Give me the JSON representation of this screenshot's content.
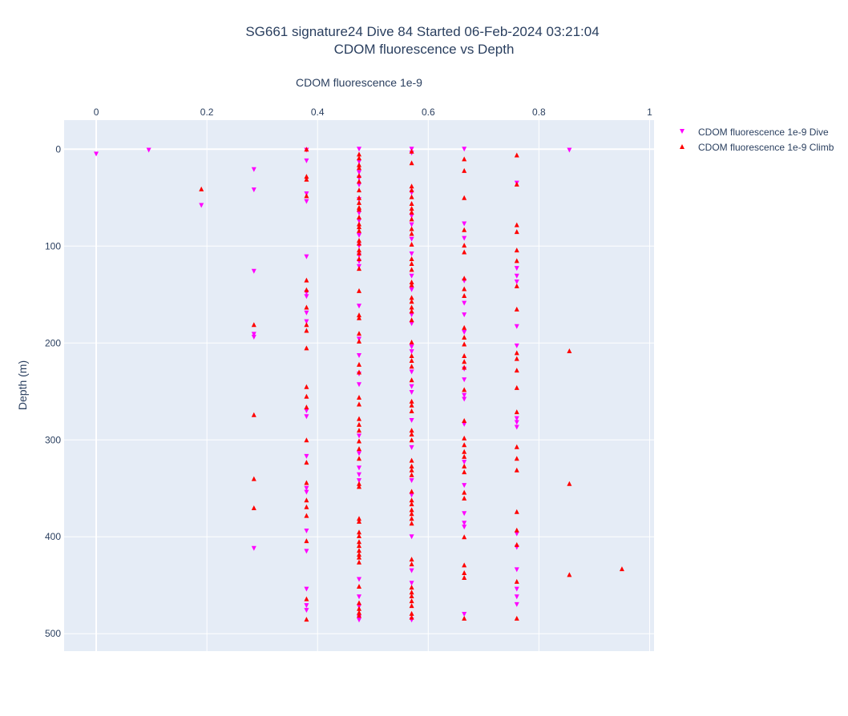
{
  "chart_data": {
    "type": "scatter",
    "title": "SG661 signature24 Dive 84 Started 06-Feb-2024 03:21:04",
    "subtitle": "CDOM fluorescence vs Depth",
    "xlabel": "CDOM fluorescence 1e-9",
    "ylabel": "Depth (m)",
    "xlim": [
      -0.058,
      1.008
    ],
    "ylim": [
      518,
      -30
    ],
    "x_axis_position": "top",
    "y_reversed": true,
    "grid": true,
    "legend_placement": "top-right",
    "x_ticks": [
      {
        "value": 0,
        "label": "0"
      },
      {
        "value": 0.2,
        "label": "0.2"
      },
      {
        "value": 0.4,
        "label": "0.4"
      },
      {
        "value": 0.6,
        "label": "0.6"
      },
      {
        "value": 0.8,
        "label": "0.8"
      },
      {
        "value": 1,
        "label": "1"
      }
    ],
    "y_ticks": [
      {
        "value": 0,
        "label": "0"
      },
      {
        "value": 100,
        "label": "100"
      },
      {
        "value": 200,
        "label": "200"
      },
      {
        "value": 300,
        "label": "300"
      },
      {
        "value": 400,
        "label": "400"
      },
      {
        "value": 500,
        "label": "500"
      }
    ],
    "series": [
      {
        "name": "CDOM fluorescence 1e-9 Dive",
        "marker": "triangle-down",
        "color": "#ff00ff",
        "points": [
          [
            0,
            5
          ],
          [
            0.095,
            1
          ],
          [
            0.285,
            21
          ],
          [
            0.285,
            42
          ],
          [
            0.19,
            58
          ],
          [
            0.285,
            126
          ],
          [
            0.285,
            191
          ],
          [
            0.285,
            194
          ],
          [
            0.285,
            412
          ],
          [
            0.38,
            1
          ],
          [
            0.38,
            12
          ],
          [
            0.38,
            46
          ],
          [
            0.38,
            54
          ],
          [
            0.38,
            111
          ],
          [
            0.38,
            148
          ],
          [
            0.38,
            152
          ],
          [
            0.38,
            169
          ],
          [
            0.38,
            178
          ],
          [
            0.38,
            270
          ],
          [
            0.38,
            276
          ],
          [
            0.38,
            317
          ],
          [
            0.38,
            350
          ],
          [
            0.38,
            354
          ],
          [
            0.38,
            394
          ],
          [
            0.38,
            415
          ],
          [
            0.38,
            454
          ],
          [
            0.38,
            471
          ],
          [
            0.38,
            476
          ],
          [
            0.475,
            0
          ],
          [
            0.475,
            13
          ],
          [
            0.475,
            24
          ],
          [
            0.475,
            30
          ],
          [
            0.475,
            37
          ],
          [
            0.475,
            52
          ],
          [
            0.475,
            66
          ],
          [
            0.475,
            74
          ],
          [
            0.475,
            89
          ],
          [
            0.475,
            100
          ],
          [
            0.475,
            110
          ],
          [
            0.475,
            116
          ],
          [
            0.475,
            121
          ],
          [
            0.475,
            162
          ],
          [
            0.475,
            196
          ],
          [
            0.475,
            213
          ],
          [
            0.475,
            232
          ],
          [
            0.475,
            243
          ],
          [
            0.475,
            296
          ],
          [
            0.475,
            314
          ],
          [
            0.475,
            329
          ],
          [
            0.475,
            336
          ],
          [
            0.475,
            342
          ],
          [
            0.475,
            444
          ],
          [
            0.475,
            462
          ],
          [
            0.475,
            472
          ],
          [
            0.475,
            483
          ],
          [
            0.475,
            486
          ],
          [
            0.57,
            0
          ],
          [
            0.57,
            4
          ],
          [
            0.57,
            45
          ],
          [
            0.57,
            69
          ],
          [
            0.57,
            78
          ],
          [
            0.57,
            93
          ],
          [
            0.57,
            108
          ],
          [
            0.57,
            131
          ],
          [
            0.57,
            145
          ],
          [
            0.57,
            171
          ],
          [
            0.57,
            180
          ],
          [
            0.57,
            204
          ],
          [
            0.57,
            209
          ],
          [
            0.57,
            230
          ],
          [
            0.57,
            245
          ],
          [
            0.57,
            251
          ],
          [
            0.57,
            280
          ],
          [
            0.57,
            308
          ],
          [
            0.57,
            342
          ],
          [
            0.57,
            357
          ],
          [
            0.57,
            400
          ],
          [
            0.57,
            435
          ],
          [
            0.57,
            448
          ],
          [
            0.57,
            486
          ],
          [
            0.665,
            0
          ],
          [
            0.665,
            77
          ],
          [
            0.665,
            92
          ],
          [
            0.665,
            136
          ],
          [
            0.665,
            159
          ],
          [
            0.665,
            171
          ],
          [
            0.665,
            189
          ],
          [
            0.665,
            227
          ],
          [
            0.665,
            238
          ],
          [
            0.665,
            254
          ],
          [
            0.665,
            258
          ],
          [
            0.665,
            284
          ],
          [
            0.665,
            323
          ],
          [
            0.665,
            347
          ],
          [
            0.665,
            376
          ],
          [
            0.665,
            386
          ],
          [
            0.665,
            390
          ],
          [
            0.665,
            480
          ],
          [
            0.76,
            35
          ],
          [
            0.76,
            123
          ],
          [
            0.76,
            131
          ],
          [
            0.76,
            137
          ],
          [
            0.76,
            183
          ],
          [
            0.76,
            203
          ],
          [
            0.76,
            278
          ],
          [
            0.76,
            282
          ],
          [
            0.76,
            287
          ],
          [
            0.76,
            397
          ],
          [
            0.76,
            411
          ],
          [
            0.76,
            434
          ],
          [
            0.76,
            454
          ],
          [
            0.76,
            462
          ],
          [
            0.76,
            470
          ],
          [
            0.855,
            1
          ]
        ]
      },
      {
        "name": "CDOM fluorescence 1e-9 Climb",
        "marker": "triangle-up",
        "color": "#ff0000",
        "points": [
          [
            0.19,
            41
          ],
          [
            0.285,
            181
          ],
          [
            0.285,
            274
          ],
          [
            0.285,
            340
          ],
          [
            0.285,
            370
          ],
          [
            0.38,
            0
          ],
          [
            0.38,
            28
          ],
          [
            0.38,
            31
          ],
          [
            0.38,
            48
          ],
          [
            0.38,
            135
          ],
          [
            0.38,
            145
          ],
          [
            0.38,
            163
          ],
          [
            0.38,
            181
          ],
          [
            0.38,
            187
          ],
          [
            0.38,
            205
          ],
          [
            0.38,
            245
          ],
          [
            0.38,
            255
          ],
          [
            0.38,
            266
          ],
          [
            0.38,
            300
          ],
          [
            0.38,
            323
          ],
          [
            0.38,
            344
          ],
          [
            0.38,
            362
          ],
          [
            0.38,
            369
          ],
          [
            0.38,
            378
          ],
          [
            0.38,
            404
          ],
          [
            0.38,
            464
          ],
          [
            0.38,
            485
          ],
          [
            0.475,
            5
          ],
          [
            0.475,
            9
          ],
          [
            0.475,
            16
          ],
          [
            0.475,
            19
          ],
          [
            0.475,
            27
          ],
          [
            0.475,
            33
          ],
          [
            0.475,
            42
          ],
          [
            0.475,
            50
          ],
          [
            0.475,
            55
          ],
          [
            0.475,
            60
          ],
          [
            0.475,
            62
          ],
          [
            0.475,
            70
          ],
          [
            0.475,
            77
          ],
          [
            0.475,
            80
          ],
          [
            0.475,
            84
          ],
          [
            0.475,
            94
          ],
          [
            0.475,
            97
          ],
          [
            0.475,
            104
          ],
          [
            0.475,
            107
          ],
          [
            0.475,
            113
          ],
          [
            0.475,
            123
          ],
          [
            0.475,
            146
          ],
          [
            0.475,
            171
          ],
          [
            0.475,
            174
          ],
          [
            0.475,
            190
          ],
          [
            0.475,
            198
          ],
          [
            0.475,
            222
          ],
          [
            0.475,
            230
          ],
          [
            0.475,
            256
          ],
          [
            0.475,
            263
          ],
          [
            0.475,
            278
          ],
          [
            0.475,
            284
          ],
          [
            0.475,
            290
          ],
          [
            0.475,
            301
          ],
          [
            0.475,
            309
          ],
          [
            0.475,
            319
          ],
          [
            0.475,
            345
          ],
          [
            0.475,
            348
          ],
          [
            0.475,
            381
          ],
          [
            0.475,
            384
          ],
          [
            0.475,
            395
          ],
          [
            0.475,
            399
          ],
          [
            0.475,
            405
          ],
          [
            0.475,
            409
          ],
          [
            0.475,
            414
          ],
          [
            0.475,
            418
          ],
          [
            0.475,
            421
          ],
          [
            0.475,
            426
          ],
          [
            0.475,
            451
          ],
          [
            0.475,
            468
          ],
          [
            0.475,
            474
          ],
          [
            0.475,
            478
          ],
          [
            0.475,
            481
          ],
          [
            0.57,
            2
          ],
          [
            0.57,
            14
          ],
          [
            0.57,
            38
          ],
          [
            0.57,
            42
          ],
          [
            0.57,
            49
          ],
          [
            0.57,
            56
          ],
          [
            0.57,
            61
          ],
          [
            0.57,
            65
          ],
          [
            0.57,
            72
          ],
          [
            0.57,
            82
          ],
          [
            0.57,
            87
          ],
          [
            0.57,
            98
          ],
          [
            0.57,
            113
          ],
          [
            0.57,
            118
          ],
          [
            0.57,
            124
          ],
          [
            0.57,
            137
          ],
          [
            0.57,
            140
          ],
          [
            0.57,
            153
          ],
          [
            0.57,
            157
          ],
          [
            0.57,
            163
          ],
          [
            0.57,
            167
          ],
          [
            0.57,
            176
          ],
          [
            0.57,
            199
          ],
          [
            0.57,
            213
          ],
          [
            0.57,
            218
          ],
          [
            0.57,
            224
          ],
          [
            0.57,
            238
          ],
          [
            0.57,
            260
          ],
          [
            0.57,
            264
          ],
          [
            0.57,
            270
          ],
          [
            0.57,
            290
          ],
          [
            0.57,
            294
          ],
          [
            0.57,
            300
          ],
          [
            0.57,
            321
          ],
          [
            0.57,
            327
          ],
          [
            0.57,
            331
          ],
          [
            0.57,
            336
          ],
          [
            0.57,
            353
          ],
          [
            0.57,
            362
          ],
          [
            0.57,
            366
          ],
          [
            0.57,
            372
          ],
          [
            0.57,
            376
          ],
          [
            0.57,
            381
          ],
          [
            0.57,
            386
          ],
          [
            0.57,
            423
          ],
          [
            0.57,
            428
          ],
          [
            0.57,
            452
          ],
          [
            0.57,
            457
          ],
          [
            0.57,
            461
          ],
          [
            0.57,
            466
          ],
          [
            0.57,
            471
          ],
          [
            0.57,
            479
          ],
          [
            0.57,
            483
          ],
          [
            0.665,
            10
          ],
          [
            0.665,
            22
          ],
          [
            0.665,
            50
          ],
          [
            0.665,
            83
          ],
          [
            0.665,
            99
          ],
          [
            0.665,
            106
          ],
          [
            0.665,
            133
          ],
          [
            0.665,
            144
          ],
          [
            0.665,
            151
          ],
          [
            0.665,
            184
          ],
          [
            0.665,
            194
          ],
          [
            0.665,
            201
          ],
          [
            0.665,
            213
          ],
          [
            0.665,
            219
          ],
          [
            0.665,
            225
          ],
          [
            0.665,
            248
          ],
          [
            0.665,
            280
          ],
          [
            0.665,
            298
          ],
          [
            0.665,
            305
          ],
          [
            0.665,
            312
          ],
          [
            0.665,
            317
          ],
          [
            0.665,
            327
          ],
          [
            0.665,
            333
          ],
          [
            0.665,
            354
          ],
          [
            0.665,
            360
          ],
          [
            0.665,
            400
          ],
          [
            0.665,
            429
          ],
          [
            0.665,
            437
          ],
          [
            0.665,
            442
          ],
          [
            0.665,
            484
          ],
          [
            0.76,
            6
          ],
          [
            0.76,
            36
          ],
          [
            0.76,
            78
          ],
          [
            0.76,
            85
          ],
          [
            0.76,
            104
          ],
          [
            0.76,
            115
          ],
          [
            0.76,
            141
          ],
          [
            0.76,
            165
          ],
          [
            0.76,
            210
          ],
          [
            0.76,
            216
          ],
          [
            0.76,
            228
          ],
          [
            0.76,
            246
          ],
          [
            0.76,
            271
          ],
          [
            0.76,
            307
          ],
          [
            0.76,
            319
          ],
          [
            0.76,
            331
          ],
          [
            0.76,
            374
          ],
          [
            0.76,
            393
          ],
          [
            0.76,
            408
          ],
          [
            0.76,
            446
          ],
          [
            0.76,
            484
          ],
          [
            0.855,
            208
          ],
          [
            0.855,
            345
          ],
          [
            0.855,
            439
          ],
          [
            0.95,
            433
          ]
        ]
      }
    ]
  }
}
